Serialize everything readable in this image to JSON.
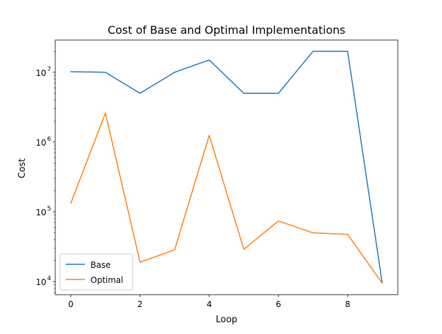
{
  "chart_data": {
    "type": "line",
    "title": "Cost of Base and Optimal Implementations",
    "xlabel": "Loop",
    "ylabel": "Cost",
    "yscale": "log",
    "x": [
      0,
      1,
      2,
      3,
      4,
      5,
      6,
      7,
      8,
      9
    ],
    "xlim": [
      -0.45,
      9.45
    ],
    "ylim": [
      6500,
      29000000
    ],
    "x_ticks": [
      0,
      2,
      4,
      6,
      8
    ],
    "x_tick_labels": [
      "0",
      "2",
      "4",
      "6",
      "8"
    ],
    "y_ticks": [
      10000,
      100000,
      1000000,
      10000000
    ],
    "y_tick_labels": [
      {
        "base": "10",
        "exp": "4"
      },
      {
        "base": "10",
        "exp": "5"
      },
      {
        "base": "10",
        "exp": "6"
      },
      {
        "base": "10",
        "exp": "7"
      }
    ],
    "grid": false,
    "legend_position": "lower-left",
    "series": [
      {
        "name": "Base",
        "color": "#1f77b4",
        "values": [
          10200000,
          10000000,
          5000000,
          10000000,
          15000000,
          5000000,
          5000000,
          20000000,
          20000000,
          9500
        ]
      },
      {
        "name": "Optimal",
        "color": "#ff7f0e",
        "values": [
          133000,
          2600000,
          19000,
          28500,
          1250000,
          29000,
          74000,
          50000,
          47500,
          9500
        ]
      }
    ]
  }
}
